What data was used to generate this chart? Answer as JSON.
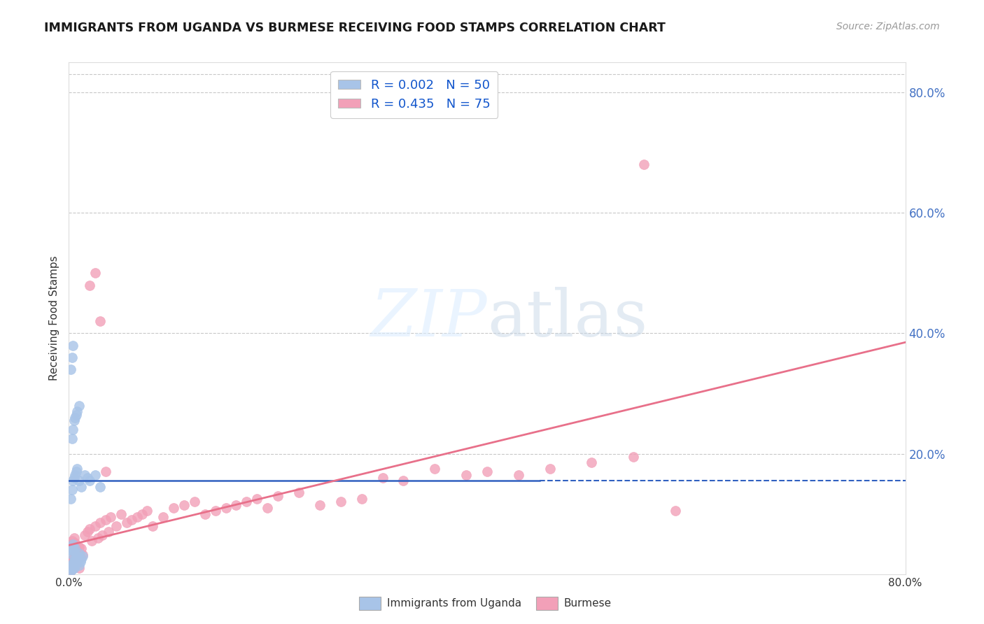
{
  "title": "IMMIGRANTS FROM UGANDA VS BURMESE RECEIVING FOOD STAMPS CORRELATION CHART",
  "source": "Source: ZipAtlas.com",
  "ylabel": "Receiving Food Stamps",
  "legend_label1": "Immigrants from Uganda",
  "legend_label2": "Burmese",
  "uganda_color": "#a8c4e8",
  "burmese_color": "#f2a0b8",
  "uganda_line_color": "#3060c0",
  "burmese_line_color": "#e8708a",
  "background_color": "#ffffff",
  "grid_color": "#c8c8c8",
  "title_color": "#1a1a1a",
  "right_axis_color": "#4472c4",
  "xlim": [
    0.0,
    0.8
  ],
  "ylim": [
    0.0,
    0.85
  ],
  "right_ytick_vals": [
    0.2,
    0.4,
    0.6,
    0.8
  ],
  "right_ytick_labels": [
    "20.0%",
    "40.0%",
    "60.0%",
    "80.0%"
  ],
  "uganda_line_y": 0.155,
  "uganda_line_xend": 0.45,
  "burmese_line_x0": 0.0,
  "burmese_line_y0": 0.048,
  "burmese_line_x1": 0.8,
  "burmese_line_y1": 0.385
}
